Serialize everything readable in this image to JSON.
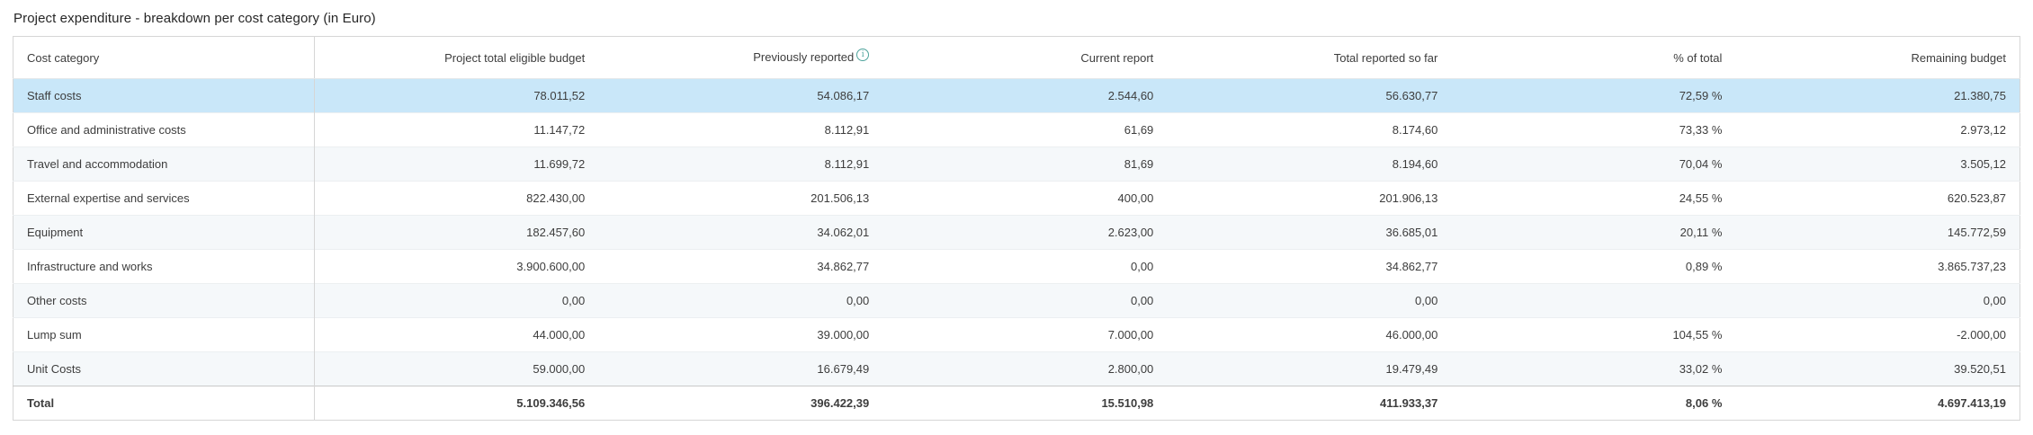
{
  "title": "Project expenditure - breakdown per cost category (in Euro)",
  "icons": {
    "info_glyph": "i"
  },
  "colors": {
    "highlight_row": "#c9e7f9",
    "stripe_row": "#f5f8fa",
    "info_icon": "#4da39b",
    "table_border": "#d6d6d6"
  },
  "table": {
    "columns": [
      "Cost category",
      "Project total eligible budget",
      "Previously reported",
      "Current report",
      "Total reported so far",
      "% of total",
      "Remaining budget"
    ],
    "rows": [
      {
        "category": "Staff costs",
        "eligible_budget": "78.011,52",
        "previously_reported": "54.086,17",
        "current_report": "2.544,60",
        "total_reported": "56.630,77",
        "pct_of_total": "72,59 %",
        "remaining": "21.380,75",
        "highlighted": true
      },
      {
        "category": "Office and administrative costs",
        "eligible_budget": "11.147,72",
        "previously_reported": "8.112,91",
        "current_report": "61,69",
        "total_reported": "8.174,60",
        "pct_of_total": "73,33 %",
        "remaining": "2.973,12",
        "highlighted": false
      },
      {
        "category": "Travel and accommodation",
        "eligible_budget": "11.699,72",
        "previously_reported": "8.112,91",
        "current_report": "81,69",
        "total_reported": "8.194,60",
        "pct_of_total": "70,04 %",
        "remaining": "3.505,12",
        "highlighted": false
      },
      {
        "category": "External expertise and services",
        "eligible_budget": "822.430,00",
        "previously_reported": "201.506,13",
        "current_report": "400,00",
        "total_reported": "201.906,13",
        "pct_of_total": "24,55 %",
        "remaining": "620.523,87",
        "highlighted": false
      },
      {
        "category": "Equipment",
        "eligible_budget": "182.457,60",
        "previously_reported": "34.062,01",
        "current_report": "2.623,00",
        "total_reported": "36.685,01",
        "pct_of_total": "20,11 %",
        "remaining": "145.772,59",
        "highlighted": false
      },
      {
        "category": "Infrastructure and works",
        "eligible_budget": "3.900.600,00",
        "previously_reported": "34.862,77",
        "current_report": "0,00",
        "total_reported": "34.862,77",
        "pct_of_total": "0,89 %",
        "remaining": "3.865.737,23",
        "highlighted": false
      },
      {
        "category": "Other costs",
        "eligible_budget": "0,00",
        "previously_reported": "0,00",
        "current_report": "0,00",
        "total_reported": "0,00",
        "pct_of_total": "",
        "remaining": "0,00",
        "highlighted": false
      },
      {
        "category": "Lump sum",
        "eligible_budget": "44.000,00",
        "previously_reported": "39.000,00",
        "current_report": "7.000,00",
        "total_reported": "46.000,00",
        "pct_of_total": "104,55 %",
        "remaining": "-2.000,00",
        "highlighted": false
      },
      {
        "category": "Unit Costs",
        "eligible_budget": "59.000,00",
        "previously_reported": "16.679,49",
        "current_report": "2.800,00",
        "total_reported": "19.479,49",
        "pct_of_total": "33,02 %",
        "remaining": "39.520,51",
        "highlighted": false
      }
    ],
    "total_row": {
      "category": "Total",
      "eligible_budget": "5.109.346,56",
      "previously_reported": "396.422,39",
      "current_report": "15.510,98",
      "total_reported": "411.933,37",
      "pct_of_total": "8,06 %",
      "remaining": "4.697.413,19"
    }
  }
}
